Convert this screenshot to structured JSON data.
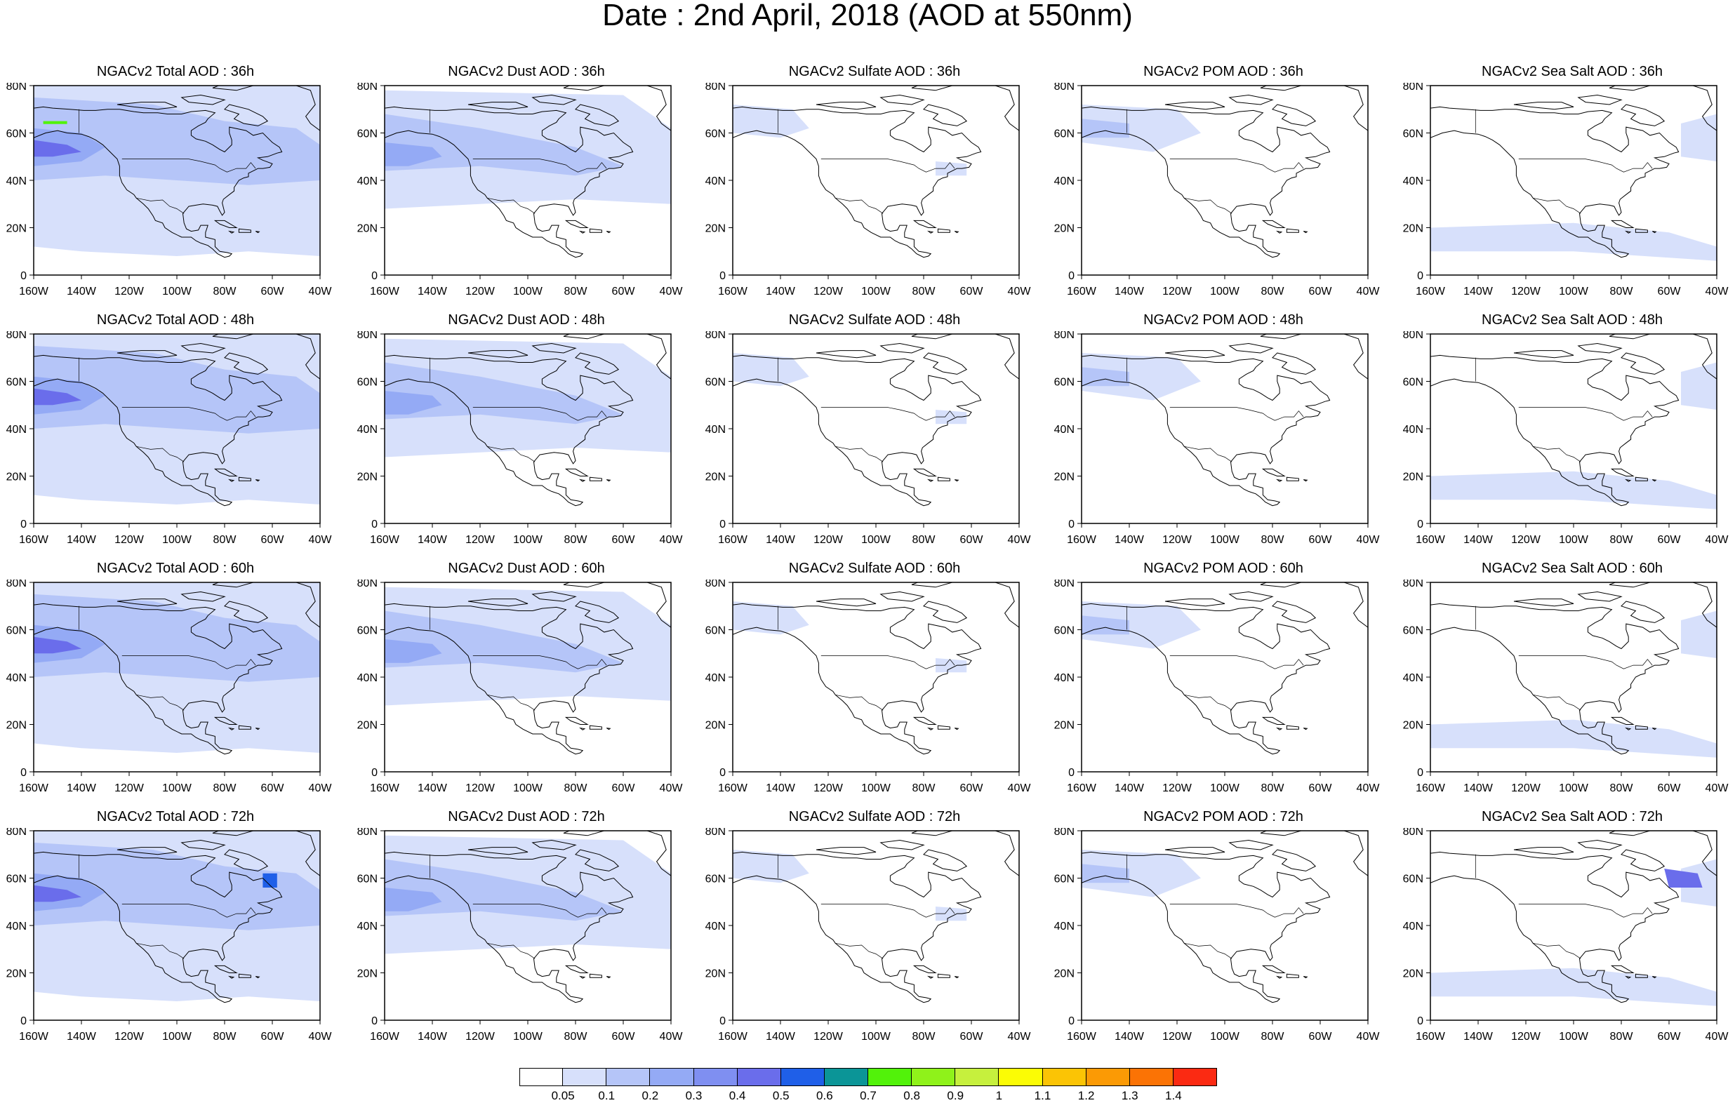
{
  "title": "Date : 2nd April, 2018 (AOD at 550nm)",
  "rows": [
    [
      "NGACv2 Total AOD : 36h",
      "NGACv2 Dust AOD : 36h",
      "NGACv2 Sulfate AOD : 36h",
      "NGACv2 POM AOD : 36h",
      "NGACv2 Sea Salt AOD : 36h"
    ],
    [
      "NGACv2 Total AOD : 48h",
      "NGACv2 Dust AOD : 48h",
      "NGACv2 Sulfate AOD : 48h",
      "NGACv2 POM AOD : 48h",
      "NGACv2 Sea Salt AOD : 48h"
    ],
    [
      "NGACv2 Total AOD : 60h",
      "NGACv2 Dust AOD : 60h",
      "NGACv2 Sulfate AOD : 60h",
      "NGACv2 POM AOD : 60h",
      "NGACv2 Sea Salt AOD : 60h"
    ],
    [
      "NGACv2 Total AOD : 72h",
      "NGACv2 Dust AOD : 72h",
      "NGACv2 Sulfate AOD : 72h",
      "NGACv2 POM AOD : 72h",
      "NGACv2 Sea Salt  AOD : 72h"
    ]
  ],
  "lat_labels": [
    "80N",
    "60N",
    "40N",
    "20N",
    "0"
  ],
  "lon_labels": [
    "160W",
    "140W",
    "120W",
    "100W",
    "80W",
    "60W",
    "40W"
  ],
  "colorbar": {
    "labels": [
      "0.05",
      "0.1",
      "0.2",
      "0.3",
      "0.4",
      "0.5",
      "0.6",
      "0.7",
      "0.8",
      "0.9",
      "1",
      "1.1",
      "1.2",
      "1.3",
      "1.4"
    ],
    "colors": [
      "#ffffff",
      "#d7e0fb",
      "#b5c5f8",
      "#94aaf5",
      "#7f8ff1",
      "#6a6deb",
      "#1f5fe8",
      "#0b9597",
      "#52f20a",
      "#8ff21a",
      "#c6f03d",
      "#fbfc05",
      "#fbc405",
      "#fb9a05",
      "#fb7305",
      "#fb2a12"
    ]
  },
  "aerosol_colors": {
    "light": "#d7e0fb",
    "medium": "#b5c5f8",
    "strong": "#94aaf5",
    "heavy": "#6a6deb",
    "peak": "#1f5fe8",
    "green": "#52f20a"
  }
}
